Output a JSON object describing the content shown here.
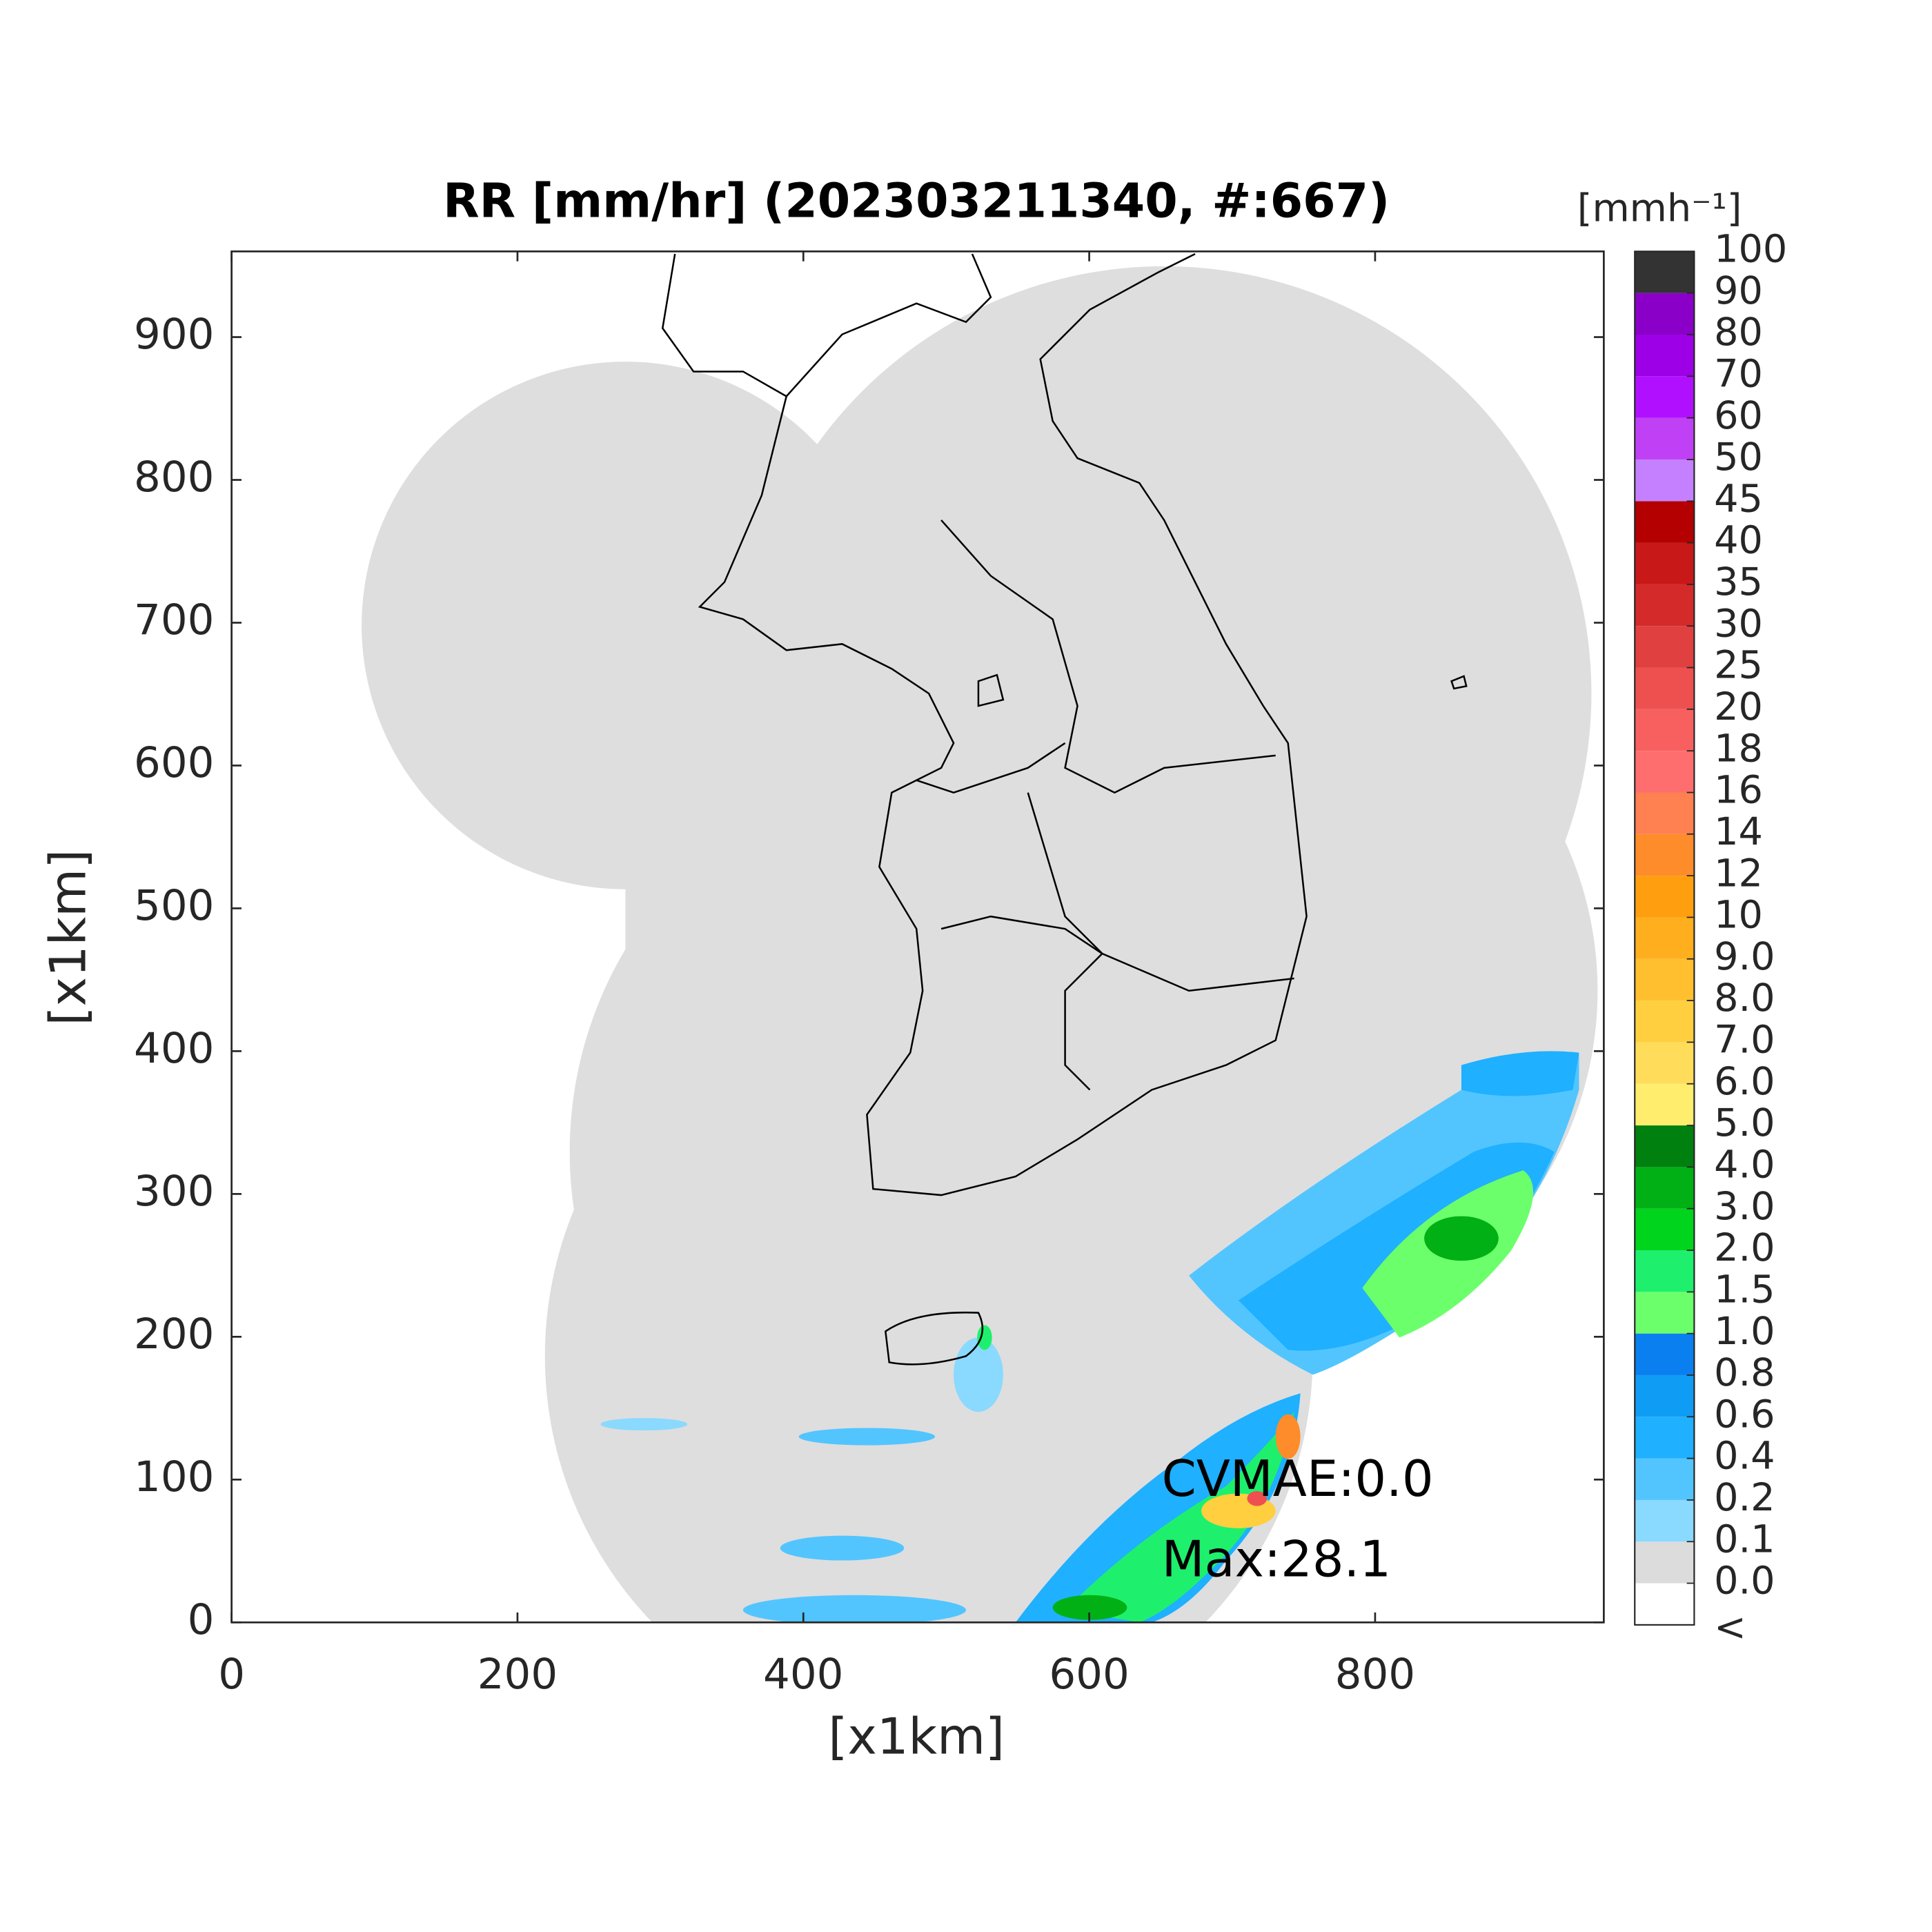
{
  "chart_data": {
    "type": "map",
    "title": "RR [mm/hr] (202303211340, #:667)",
    "x_label": "[x1km]",
    "y_label": "[x1km]",
    "xlim": [
      0,
      960
    ],
    "ylim": [
      0,
      960
    ],
    "xticks": [
      0,
      200,
      400,
      600,
      800
    ],
    "yticks": [
      0,
      100,
      200,
      300,
      400,
      500,
      600,
      700,
      800,
      900
    ],
    "annotations": [
      "CVMAE:0.0",
      "Max:28.1"
    ],
    "colorbar": {
      "label": "[mmh⁻¹]",
      "under_label": "<",
      "levels": [
        {
          "value": 0,
          "label": "0.0"
        },
        0.1,
        0.2,
        0.4,
        0.6,
        0.8,
        {
          "value": 1,
          "label": "1.0"
        },
        1.5,
        {
          "value": 2,
          "label": "2.0"
        },
        {
          "value": 3,
          "label": "3.0"
        },
        {
          "value": 4,
          "label": "4.0"
        },
        {
          "value": 5,
          "label": "5.0"
        },
        {
          "value": 6,
          "label": "6.0"
        },
        {
          "value": 7,
          "label": "7.0"
        },
        {
          "value": 8,
          "label": "8.0"
        },
        {
          "value": 9,
          "label": "9.0"
        },
        10,
        12,
        14,
        16,
        18,
        20,
        25,
        30,
        35,
        40,
        45,
        50,
        60,
        70,
        80,
        90,
        100
      ],
      "colors": [
        "#ffffff",
        "#dcdcdc",
        "#8ad9ff",
        "#52c5ff",
        "#1fb0ff",
        "#0f9cf5",
        "#0a80f0",
        "#6bff6b",
        "#1ef06e",
        "#00d41c",
        "#00b015",
        "#00800e",
        "#ffee6e",
        "#ffdd5a",
        "#ffcf40",
        "#ffbf2e",
        "#ffae1e",
        "#ff9f0f",
        "#ff8c2a",
        "#ff8050",
        "#ff6e6e",
        "#f86060",
        "#ee5050",
        "#e04040",
        "#d42a2a",
        "#c81818",
        "#b40000",
        "#c480ff",
        "#c040f5",
        "#b010ff",
        "#9d00e6",
        "#8a00c8",
        "#333333"
      ]
    }
  }
}
